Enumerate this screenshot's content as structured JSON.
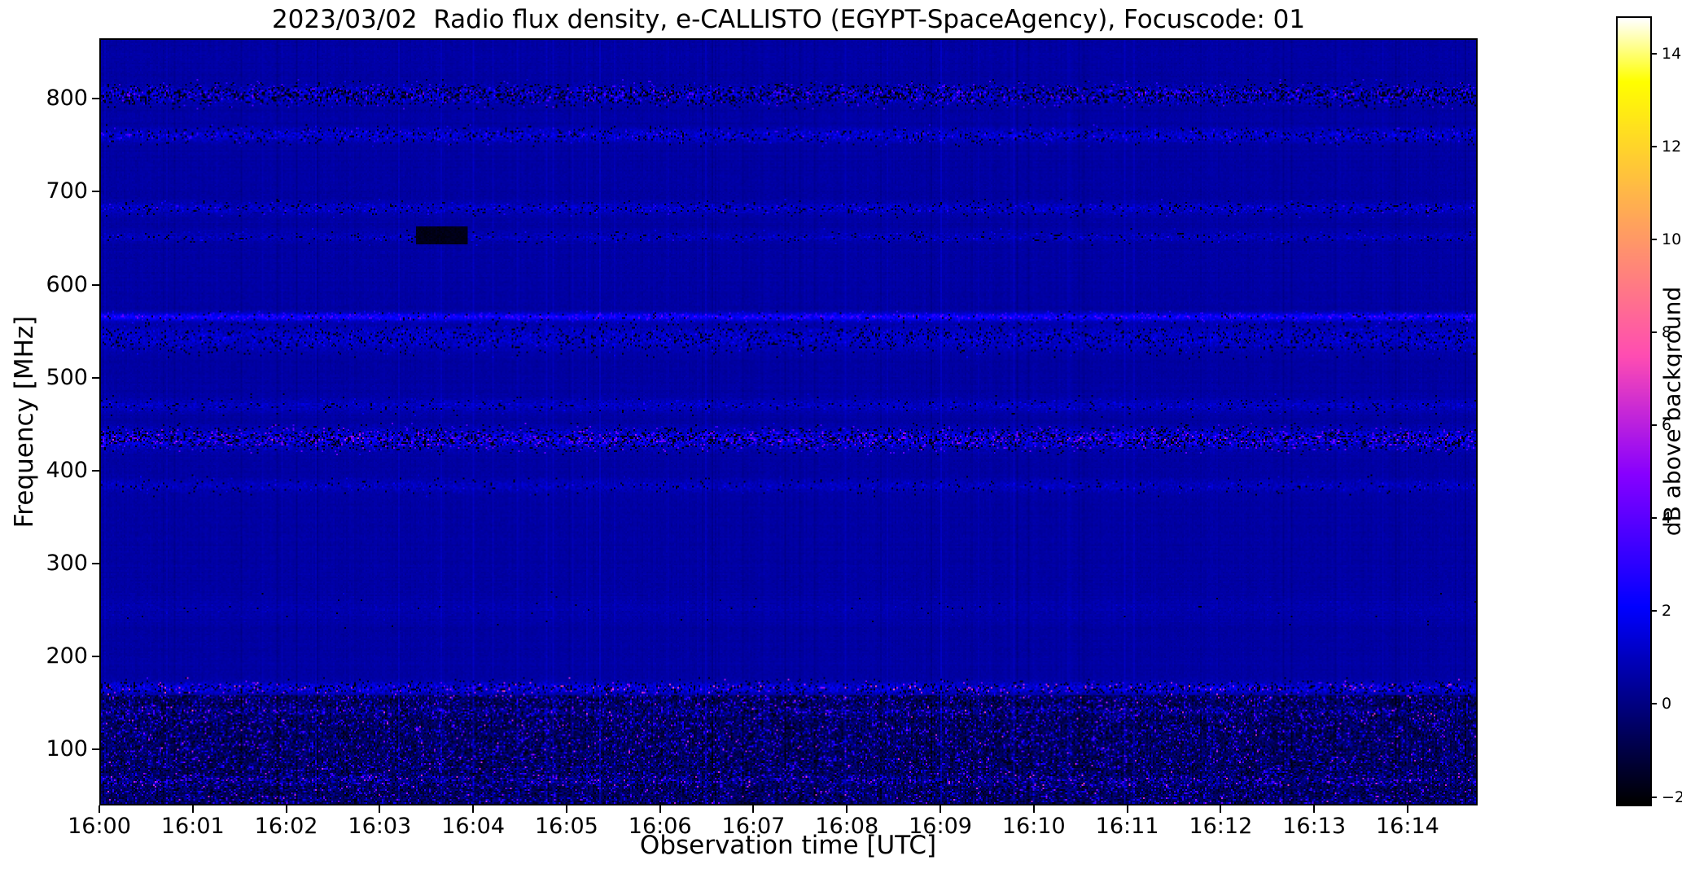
{
  "chart_data": {
    "type": "heatmap",
    "title": "2023/03/02  Radio flux density, e-CALLISTO (EGYPT-SpaceAgency), Focuscode: 01",
    "xlabel": "Observation time [UTC]",
    "ylabel": "Frequency [MHz]",
    "colorbar_label": "dB above background",
    "colormap": "gnuplot2",
    "value_range_db": [
      -2.2,
      14.8
    ],
    "freq_range_mhz": [
      40,
      865
    ],
    "time_start_utc": "16:00",
    "time_span_s": 885,
    "grid": false,
    "x_ticks": [
      {
        "label": "16:00",
        "t_s": 0
      },
      {
        "label": "16:01",
        "t_s": 60
      },
      {
        "label": "16:02",
        "t_s": 120
      },
      {
        "label": "16:03",
        "t_s": 180
      },
      {
        "label": "16:04",
        "t_s": 240
      },
      {
        "label": "16:05",
        "t_s": 300
      },
      {
        "label": "16:06",
        "t_s": 360
      },
      {
        "label": "16:07",
        "t_s": 420
      },
      {
        "label": "16:08",
        "t_s": 480
      },
      {
        "label": "16:09",
        "t_s": 540
      },
      {
        "label": "16:10",
        "t_s": 600
      },
      {
        "label": "16:11",
        "t_s": 660
      },
      {
        "label": "16:12",
        "t_s": 720
      },
      {
        "label": "16:13",
        "t_s": 780
      },
      {
        "label": "16:14",
        "t_s": 840
      }
    ],
    "y_ticks": [
      {
        "label": "800",
        "f_mhz": 800
      },
      {
        "label": "700",
        "f_mhz": 700
      },
      {
        "label": "600",
        "f_mhz": 600
      },
      {
        "label": "500",
        "f_mhz": 500
      },
      {
        "label": "400",
        "f_mhz": 400
      },
      {
        "label": "300",
        "f_mhz": 300
      },
      {
        "label": "200",
        "f_mhz": 200
      },
      {
        "label": "100",
        "f_mhz": 100
      }
    ],
    "colorbar_ticks": [
      {
        "label": "14",
        "value_db": 14
      },
      {
        "label": "12",
        "value_db": 12
      },
      {
        "label": "10",
        "value_db": 10
      },
      {
        "label": "8",
        "value_db": 8
      },
      {
        "label": "6",
        "value_db": 6
      },
      {
        "label": "4",
        "value_db": 4
      },
      {
        "label": "2",
        "value_db": 2
      },
      {
        "label": "0",
        "value_db": 0
      },
      {
        "label": "−2",
        "value_db": -2
      }
    ],
    "background_level_db": 0.5,
    "rfi_bands": [
      {
        "name": "806 MHz RFI band",
        "f_mhz": 806,
        "halfwidth_mhz": 9,
        "mean_db": 0.5,
        "var_db": 1.4,
        "dark_speckle_prob": 0.28,
        "bright_speckle_prob": 0.12,
        "bright_amp_db": 2.2
      },
      {
        "name": "762 MHz band",
        "f_mhz": 762,
        "halfwidth_mhz": 7,
        "mean_db": 0.7,
        "var_db": 0.9,
        "dark_speckle_prob": 0.1,
        "bright_speckle_prob": 0.07,
        "bright_amp_db": 1.6
      },
      {
        "name": "683 MHz band",
        "f_mhz": 683,
        "halfwidth_mhz": 6,
        "mean_db": 0.55,
        "var_db": 0.7,
        "dark_speckle_prob": 0.08,
        "bright_speckle_prob": 0.05,
        "bright_amp_db": 1.4
      },
      {
        "name": "652 MHz band",
        "f_mhz": 652,
        "halfwidth_mhz": 5,
        "mean_db": 0.4,
        "var_db": 0.55,
        "dark_speckle_prob": 0.05,
        "bright_speckle_prob": 0.03,
        "bright_amp_db": 1.2
      },
      {
        "name": "566 MHz bright band",
        "f_mhz": 566,
        "halfwidth_mhz": 4,
        "mean_db": 1.7,
        "var_db": 0.8,
        "dark_speckle_prob": 0.04,
        "bright_speckle_prob": 0.18,
        "bright_amp_db": 1.4
      },
      {
        "name": "543 MHz textured band",
        "f_mhz": 543,
        "halfwidth_mhz": 13,
        "mean_db": 0.6,
        "var_db": 0.7,
        "dark_speckle_prob": 0.12,
        "bright_speckle_prob": 0.04,
        "bright_amp_db": 1.1
      },
      {
        "name": "470 MHz band",
        "f_mhz": 470,
        "halfwidth_mhz": 7,
        "mean_db": 0.5,
        "var_db": 0.55,
        "dark_speckle_prob": 0.05,
        "bright_speckle_prob": 0.03,
        "bright_amp_db": 1.0
      },
      {
        "name": "434 MHz strong RFI",
        "f_mhz": 434,
        "halfwidth_mhz": 10,
        "mean_db": 0.9,
        "var_db": 1.6,
        "dark_speckle_prob": 0.22,
        "bright_speckle_prob": 0.14,
        "bright_amp_db": 2.6
      },
      {
        "name": "383 MHz band",
        "f_mhz": 383,
        "halfwidth_mhz": 7,
        "mean_db": 0.45,
        "var_db": 0.5,
        "dark_speckle_prob": 0.04,
        "bright_speckle_prob": 0.03,
        "bright_amp_db": 0.9
      },
      {
        "name": "250 MHz faint band",
        "f_mhz": 250,
        "halfwidth_mhz": 12,
        "mean_db": 0.2,
        "var_db": 0.2,
        "dark_speckle_prob": 0.005,
        "bright_speckle_prob": 0.01,
        "bright_amp_db": 0.5
      },
      {
        "name": "165 MHz RFI with pink bursts",
        "f_mhz": 165,
        "halfwidth_mhz": 6,
        "mean_db": 0.9,
        "var_db": 1.3,
        "dark_speckle_prob": 0.15,
        "bright_speckle_prob": 0.06,
        "bright_amp_db": 4.0
      },
      {
        "name": "140 MHz band",
        "f_mhz": 140,
        "halfwidth_mhz": 4,
        "mean_db": 0.8,
        "var_db": 0.9,
        "dark_speckle_prob": 0.08,
        "bright_speckle_prob": 0.05,
        "bright_amp_db": 2.0
      },
      {
        "name": "65 MHz band",
        "f_mhz": 65,
        "halfwidth_mhz": 5,
        "mean_db": 0.7,
        "var_db": 0.9,
        "dark_speckle_prob": 0.08,
        "bright_speckle_prob": 0.06,
        "bright_amp_db": 2.2
      }
    ],
    "noise_region": {
      "name": "broadband low-frequency noise floor",
      "f_top_mhz": 158,
      "mean_db": -0.7,
      "var_db": 1.1,
      "blue_speckle_prob": 0.1,
      "pink_speckle_prob": 0.012,
      "pink_amp_db": 5.0
    },
    "features": [
      {
        "name": "dark absorption patch",
        "t_s": [
          203,
          235
        ],
        "f_mhz": [
          645,
          663
        ],
        "value_db": -2.0
      }
    ]
  }
}
